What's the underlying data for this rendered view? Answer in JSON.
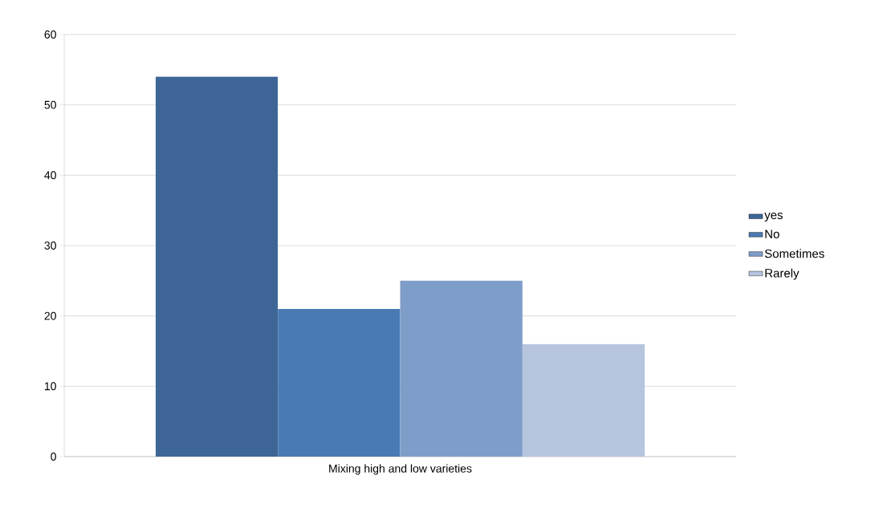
{
  "chart_data": {
    "type": "bar",
    "categories": [
      "Mixing high and low varieties"
    ],
    "series": [
      {
        "name": "yes",
        "color": "#3d6697",
        "values": [
          54
        ]
      },
      {
        "name": "No",
        "color": "#4a7ab3",
        "values": [
          21
        ]
      },
      {
        "name": "Sometimes",
        "color": "#7f9dc9",
        "values": [
          25
        ]
      },
      {
        "name": "Rarely",
        "color": "#b6c4de",
        "values": [
          16
        ]
      }
    ],
    "ylim": [
      0,
      60
    ],
    "yticks": [
      0,
      10,
      20,
      30,
      40,
      50,
      60
    ],
    "grid": "y",
    "legend": "right"
  }
}
